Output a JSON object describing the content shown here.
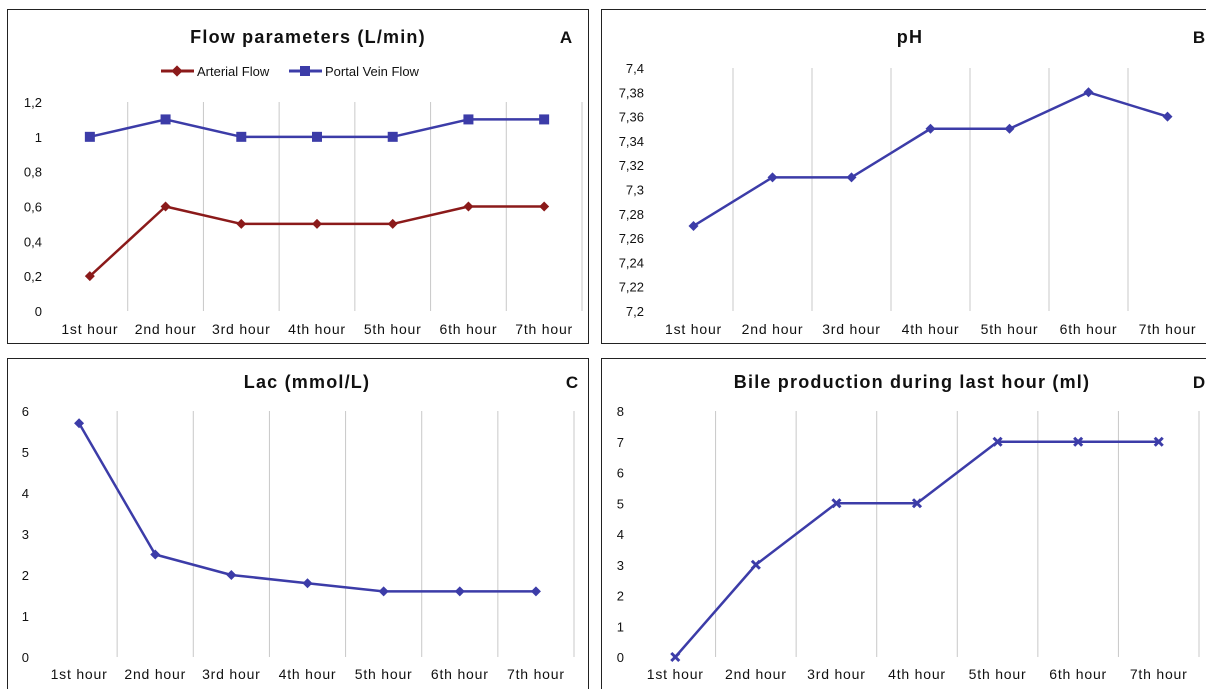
{
  "chart_data": [
    {
      "type": "line",
      "panel_letter": "A",
      "title": "Flow parameters (L/min)",
      "categories": [
        "1st hour",
        "2nd hour",
        "3rd hour",
        "4th hour",
        "5th hour",
        "6th hour",
        "7th hour"
      ],
      "ylim": [
        0,
        1.2
      ],
      "yticks": [
        "0",
        "0,2",
        "0,4",
        "0,6",
        "0,8",
        "1",
        "1,2"
      ],
      "grid": "vertical",
      "legend": "top",
      "series": [
        {
          "name": "Arterial Flow",
          "values": [
            0.2,
            0.6,
            0.5,
            0.5,
            0.5,
            0.6,
            0.6
          ],
          "color": "#8b1a1a",
          "marker": "diamond"
        },
        {
          "name": "Portal Vein Flow",
          "values": [
            1.0,
            1.1,
            1.0,
            1.0,
            1.0,
            1.1,
            1.1
          ],
          "color": "#3c3ca8",
          "marker": "square"
        }
      ]
    },
    {
      "type": "line",
      "panel_letter": "B",
      "title": "pH",
      "categories": [
        "1st hour",
        "2nd hour",
        "3rd hour",
        "4th hour",
        "5th hour",
        "6th hour",
        "7th hour"
      ],
      "ylim": [
        7.2,
        7.4
      ],
      "yticks": [
        "7,2",
        "7,22",
        "7,24",
        "7,26",
        "7,28",
        "7,3",
        "7,32",
        "7,34",
        "7,36",
        "7,38",
        "7,4"
      ],
      "grid": "vertical",
      "series": [
        {
          "values": [
            7.27,
            7.31,
            7.31,
            7.35,
            7.35,
            7.38,
            7.36
          ],
          "color": "#3c3ca8",
          "marker": "diamond"
        }
      ]
    },
    {
      "type": "line",
      "panel_letter": "C",
      "title": "Lac (mmol/L)",
      "categories": [
        "1st hour",
        "2nd hour",
        "3rd hour",
        "4th hour",
        "5th hour",
        "6th hour",
        "7th hour"
      ],
      "ylim": [
        0,
        6
      ],
      "yticks": [
        "0",
        "1",
        "2",
        "3",
        "4",
        "5",
        "6"
      ],
      "grid": "vertical",
      "series": [
        {
          "values": [
            5.7,
            2.5,
            2.0,
            1.8,
            1.6,
            1.6,
            1.6
          ],
          "color": "#3c3ca8",
          "marker": "diamond"
        }
      ]
    },
    {
      "type": "line",
      "panel_letter": "D",
      "title": "Bile production during last hour (ml)",
      "categories": [
        "1st hour",
        "2nd hour",
        "3rd hour",
        "4th hour",
        "5th hour",
        "6th hour",
        "7th hour"
      ],
      "ylim": [
        0,
        8
      ],
      "yticks": [
        "0",
        "1",
        "2",
        "3",
        "4",
        "5",
        "6",
        "7",
        "8"
      ],
      "grid": "vertical",
      "series": [
        {
          "values": [
            0,
            3,
            5,
            5,
            7,
            7,
            7
          ],
          "color": "#3c3ca8",
          "marker": "cross"
        }
      ]
    }
  ]
}
